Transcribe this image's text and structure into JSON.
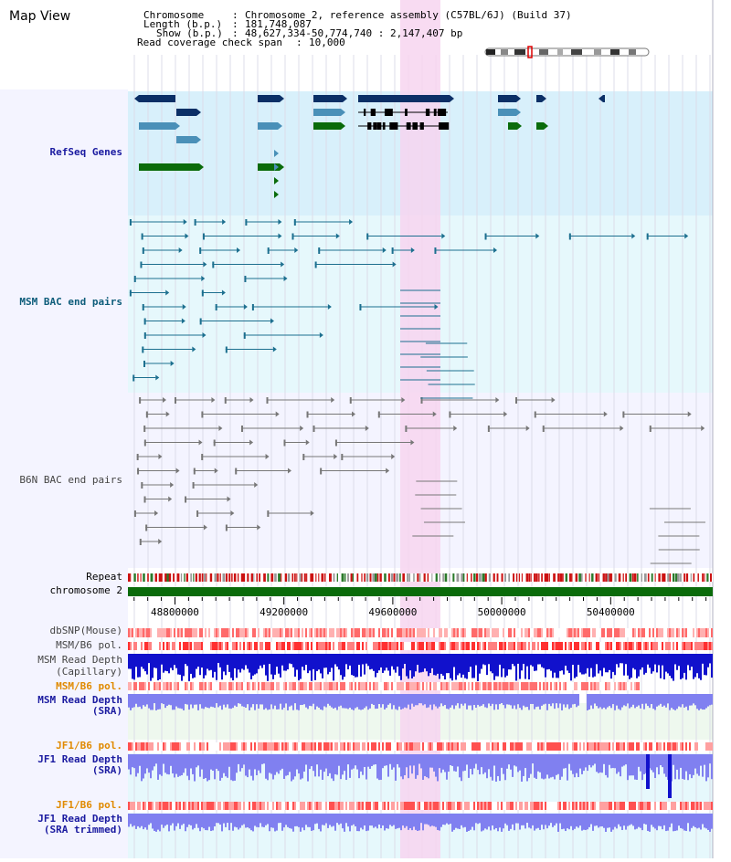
{
  "page": {
    "title": "Map View"
  },
  "info": {
    "chromosome_key": "Chromosome",
    "chromosome_val": "Chromosome 2, reference assembly (C57BL/6J) (Build 37)",
    "length_key": "Length (b.p.)",
    "length_val": "181,748,087",
    "show_key": "Show (b.p.)",
    "show_val": "48,627,334-50,774,740 : 2,147,407 bp",
    "coverage_key": "Read coverage check span",
    "coverage_val": "10,000"
  },
  "ruler": {
    "range": [
      48627334,
      50774740
    ],
    "ticks": [
      "48800000",
      "49200000",
      "49600000",
      "50000000",
      "50400000"
    ]
  },
  "tracks": {
    "refseq": {
      "label": "RefSeq Genes"
    },
    "msm_bac": {
      "label": "MSM BAC end pairs"
    },
    "b6n_bac": {
      "label": "B6N BAC end pairs"
    },
    "repeat": {
      "label": "Repeat"
    },
    "chrom": {
      "label": "chromosome 2"
    },
    "dbsnp": {
      "label": "dbSNP(Mouse)"
    },
    "msm_pol": {
      "label": "MSM/B6 pol."
    },
    "msm_depth_cap": {
      "label1": "MSM Read Depth",
      "label2": "(Capillary)"
    },
    "msm_pol_sra": {
      "label": "MSM/B6 pol."
    },
    "msm_depth_sra": {
      "label1": "MSM Read Depth",
      "label2": "(SRA)"
    },
    "jf1_pol": {
      "label": "JF1/B6 pol."
    },
    "jf1_depth_sra": {
      "label1": "JF1 Read Depth",
      "label2": "(SRA)"
    },
    "jf1_pol_trim": {
      "label": "JF1/B6 pol."
    },
    "jf1_depth_trim": {
      "label1": "JF1 Read Depth",
      "label2": "(SRA trimmed)"
    }
  },
  "colors": {
    "gene_dark": "#0b2f66",
    "gene_mid": "#4a90b8",
    "gene_green": "#0a6b0a",
    "bac_teal": "#1c6f8f",
    "bac_gray": "#777777",
    "highlight": "#f7d5f0",
    "repeat_red": "#cc1111",
    "chrom_green": "#0a6b0a",
    "depth_blue": "#1111cc",
    "depth_light": "#8080f0"
  }
}
